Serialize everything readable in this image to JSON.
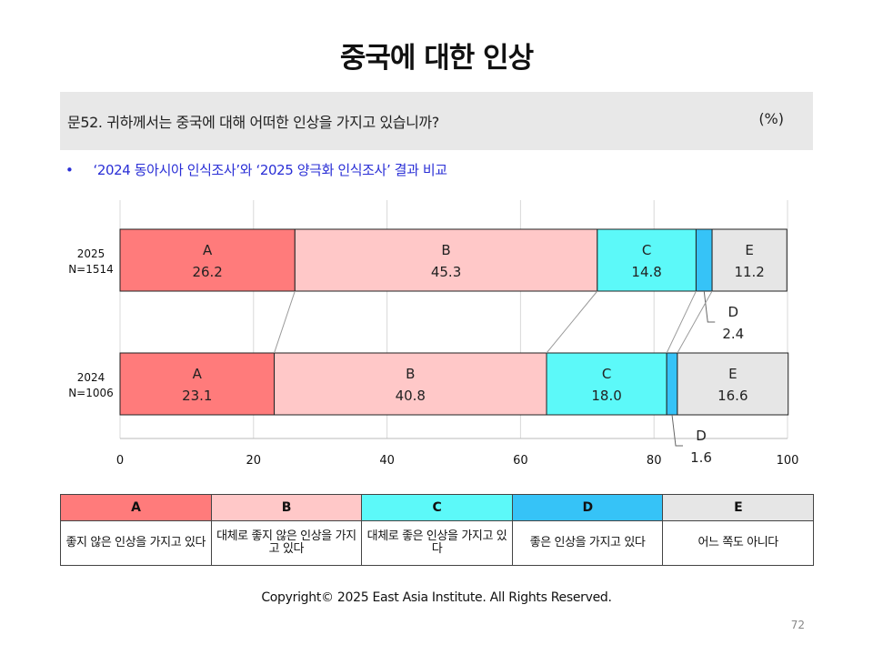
{
  "page": {
    "title": "중국에 대한 인상",
    "question": "문52. 귀하께서는 중국에 대해 어떠한 인상을 가지고 있습니까?",
    "unit": "(%)",
    "bullet_mark": "•",
    "note": "‘2024 동아시아 인식조사’와 ‘2025 양극화 인식조사’ 결과 비교",
    "copyright": "Copyright© 2025 East Asia Institute. All Rights Reserved.",
    "page_number": "72"
  },
  "legend": [
    {
      "key": "A",
      "label": "좋지 않은 인상을 가지고 있다",
      "color": "#ff7b7b"
    },
    {
      "key": "B",
      "label": "대체로 좋지 않은 인상을 가지고 있다",
      "color": "#ffc8c8"
    },
    {
      "key": "C",
      "label": "대체로 좋은 인상을 가지고 있다",
      "color": "#5cf9f9"
    },
    {
      "key": "D",
      "label": "좋은 인상을 가지고 있다",
      "color": "#36c3f7"
    },
    {
      "key": "E",
      "label": "어느 쪽도 아니다",
      "color": "#e6e6e6"
    }
  ],
  "chart_data": {
    "type": "bar",
    "orientation": "horizontal",
    "stacked": true,
    "categories": [
      "2025\nN=1514",
      "2024\nN=1006"
    ],
    "category_labels": [
      [
        "2025",
        "N=1514"
      ],
      [
        "2024",
        "N=1006"
      ]
    ],
    "series": [
      {
        "name": "A",
        "values": [
          26.2,
          23.1
        ],
        "color": "#ff7b7b"
      },
      {
        "name": "B",
        "values": [
          45.3,
          40.8
        ],
        "color": "#ffc8c8"
      },
      {
        "name": "C",
        "values": [
          14.8,
          18.0
        ],
        "color": "#5cf9f9"
      },
      {
        "name": "D",
        "values": [
          2.4,
          1.6
        ],
        "color": "#36c3f7"
      },
      {
        "name": "E",
        "values": [
          11.2,
          16.6
        ],
        "color": "#e6e6e6"
      }
    ],
    "xlim": [
      0,
      100
    ],
    "xticks": [
      0,
      20,
      40,
      60,
      80,
      100
    ],
    "grid": true,
    "value_labels": [
      "26.2",
      "45.3",
      "14.8",
      "2.4",
      "11.2",
      "23.1",
      "40.8",
      "18.0",
      "1.6",
      "16.6"
    ],
    "xlabel": "",
    "ylabel": ""
  }
}
